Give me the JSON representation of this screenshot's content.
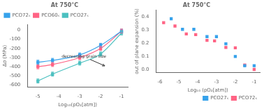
{
  "chart_data": [
    {
      "type": "line",
      "title": "At 750°C",
      "xlabel": "Log₁₀(pO₂[atm])",
      "ylabel": "Δσ (MPa)",
      "xlim": [
        -5.5,
        -0.7
      ],
      "ylim": [
        -620,
        60
      ],
      "xticks": [
        -5,
        -4,
        -3,
        -2,
        -1
      ],
      "yticks": [
        0,
        -100,
        -200,
        -300,
        -400,
        -500,
        -600
      ],
      "grid": false,
      "legend": "upper left",
      "marker": "square",
      "line_style": "solid",
      "series": [
        {
          "name": "PCO72ₛ",
          "x": [
            -5.0,
            -4.3,
            -3.0,
            -2.0,
            -1.0
          ],
          "values": [
            -350,
            -330,
            -270,
            -165,
            -10
          ],
          "yerr": [
            22,
            22,
            22,
            22,
            22
          ]
        },
        {
          "name": "PCO60ₛ",
          "x": [
            -5.0,
            -4.3,
            -3.0,
            -2.0,
            -1.0
          ],
          "values": [
            -400,
            -375,
            -300,
            -200,
            -10
          ],
          "yerr": [
            22,
            22,
            22,
            22,
            22
          ]
        },
        {
          "name": "PCO27ₛ",
          "x": [
            -5.0,
            -4.3,
            -3.0,
            -2.0,
            -1.0
          ],
          "values": [
            -555,
            -480,
            -360,
            -260,
            -30
          ],
          "yerr": [
            22,
            22,
            22,
            22,
            22
          ]
        }
      ],
      "annotations": [
        {
          "text": "decreasing grain size",
          "xy": [
            -1.8,
            -390
          ],
          "xytext": [
            -2.8,
            -290
          ]
        }
      ]
    },
    {
      "type": "scatter",
      "title": "At 750°C",
      "xlabel": "Log₁₀ (pO₂[atm])",
      "ylabel": "out of plane expansion (%)",
      "xlim": [
        -6.2,
        -0.7
      ],
      "ylim": [
        -0.02,
        0.45
      ],
      "xticks": [
        -6,
        -5,
        -4,
        -3,
        -2,
        -1
      ],
      "yticks": [
        {
          "value": 0.0,
          "label": "0.0"
        },
        {
          "value": 0.1,
          "label": "0.1"
        },
        {
          "value": 0.2,
          "label": "0.2"
        },
        {
          "value": 0.3,
          "label": "0.3"
        },
        {
          "value": 0.4,
          "label": "0.4"
        }
      ],
      "grid": false,
      "legend": "lower right",
      "marker": "square",
      "series": [
        {
          "name": "PCO27ₛ",
          "x": [
            -5.4,
            -4.8,
            -4.2,
            -3.5,
            -3.0,
            -2.5,
            -2.0,
            -1.5,
            -1.0
          ],
          "values": [
            0.385,
            0.305,
            0.305,
            0.25,
            0.25,
            0.195,
            0.1,
            0.03,
            0.03
          ]
        },
        {
          "name": "PCO72ₛ",
          "x": [
            -5.8,
            -5.2,
            -4.6,
            -4.1,
            -3.5,
            -3.1,
            -2.5,
            -2.0,
            -1.5,
            -1.0
          ],
          "values": [
            0.355,
            0.33,
            0.27,
            0.265,
            0.222,
            0.218,
            0.168,
            0.165,
            0.035,
            0.002
          ]
        }
      ]
    }
  ]
}
